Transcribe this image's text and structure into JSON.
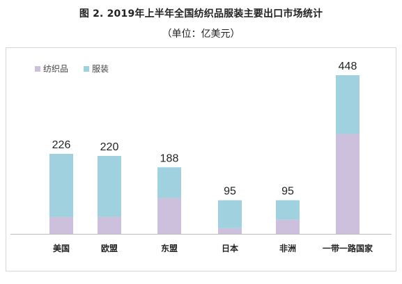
{
  "title": "图 2. 2019年上半年全国纺织品服装主要出口市场统计",
  "subtitle": "（单位：亿美元）",
  "chart_data": {
    "type": "bar",
    "stacked": true,
    "categories": [
      "美国",
      "欧盟",
      "东盟",
      "日本",
      "非洲",
      "一带一路国家"
    ],
    "series": [
      {
        "name": "纺织品",
        "color": "#cdc0dc",
        "values": [
          48,
          48,
          101,
          16,
          40,
          282
        ]
      },
      {
        "name": "服装",
        "color": "#9fd1df",
        "values": [
          178,
          172,
          87,
          79,
          55,
          166
        ]
      }
    ],
    "totals": [
      226,
      220,
      188,
      95,
      95,
      448
    ],
    "legend": "top-left",
    "grid": false,
    "ylim": [
      0,
      480
    ]
  }
}
